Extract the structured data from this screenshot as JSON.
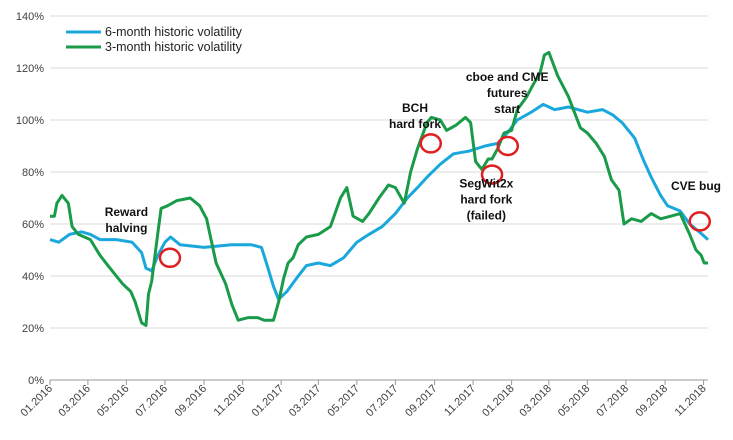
{
  "chart_data": {
    "type": "line",
    "title": "",
    "xlabel": "",
    "ylabel": "",
    "ylim": [
      0,
      140
    ],
    "yticks": [
      0,
      20,
      40,
      60,
      80,
      100,
      120,
      140
    ],
    "ytick_labels": [
      "0%",
      "20%",
      "40%",
      "60%",
      "80%",
      "100%",
      "120%",
      "140%"
    ],
    "xlim": [
      "2016-01-01",
      "2018-11-08"
    ],
    "x_tick_dates": [
      "2016-01-01",
      "2016-03-01",
      "2016-05-01",
      "2016-07-01",
      "2016-09-01",
      "2016-11-01",
      "2017-01-01",
      "2017-03-01",
      "2017-05-01",
      "2017-07-01",
      "2017-09-01",
      "2017-11-01",
      "2018-01-01",
      "2018-03-01",
      "2018-05-01",
      "2018-07-01",
      "2018-09-01",
      "2018-11-01"
    ],
    "x_tick_labels": [
      "01.2016",
      "03.2016",
      "05.2016",
      "07.2016",
      "09.2016",
      "11.2016",
      "01.2017",
      "03.2017",
      "05.2017",
      "07.2017",
      "09.2017",
      "11.2017",
      "01.2018",
      "03.2018",
      "05.2018",
      "07.2018",
      "09.2018",
      "11.2018"
    ],
    "grid": "horizontal",
    "legend_position": "top-left",
    "series": [
      {
        "name": "6-month historic volatility",
        "color": "#1aa8dc",
        "points": [
          [
            "2016-01-01",
            54
          ],
          [
            "2016-01-15",
            53
          ],
          [
            "2016-02-01",
            56
          ],
          [
            "2016-02-20",
            57
          ],
          [
            "2016-03-05",
            56
          ],
          [
            "2016-03-20",
            54
          ],
          [
            "2016-04-15",
            54
          ],
          [
            "2016-05-10",
            53
          ],
          [
            "2016-05-25",
            49
          ],
          [
            "2016-06-01",
            43
          ],
          [
            "2016-06-10",
            42
          ],
          [
            "2016-06-20",
            48
          ],
          [
            "2016-07-01",
            53
          ],
          [
            "2016-07-10",
            55
          ],
          [
            "2016-07-25",
            52
          ],
          [
            "2016-09-01",
            51
          ],
          [
            "2016-10-15",
            52
          ],
          [
            "2016-11-15",
            52
          ],
          [
            "2016-12-01",
            51
          ],
          [
            "2016-12-10",
            44
          ],
          [
            "2016-12-20",
            36
          ],
          [
            "2016-12-28",
            31
          ],
          [
            "2017-01-10",
            34
          ],
          [
            "2017-01-25",
            39
          ],
          [
            "2017-02-10",
            44
          ],
          [
            "2017-03-01",
            45
          ],
          [
            "2017-03-20",
            44
          ],
          [
            "2017-04-10",
            47
          ],
          [
            "2017-05-01",
            53
          ],
          [
            "2017-05-20",
            56
          ],
          [
            "2017-06-10",
            59
          ],
          [
            "2017-07-01",
            64
          ],
          [
            "2017-07-20",
            70
          ],
          [
            "2017-08-05",
            74
          ],
          [
            "2017-08-20",
            78
          ],
          [
            "2017-09-10",
            83
          ],
          [
            "2017-10-01",
            87
          ],
          [
            "2017-10-25",
            88
          ],
          [
            "2017-11-20",
            90
          ],
          [
            "2017-12-10",
            91
          ],
          [
            "2017-12-25",
            95
          ],
          [
            "2018-01-10",
            100
          ],
          [
            "2018-02-01",
            103
          ],
          [
            "2018-02-20",
            106
          ],
          [
            "2018-03-10",
            104
          ],
          [
            "2018-04-01",
            105
          ],
          [
            "2018-05-01",
            103
          ],
          [
            "2018-05-25",
            104
          ],
          [
            "2018-06-10",
            102
          ],
          [
            "2018-06-25",
            99
          ],
          [
            "2018-07-15",
            93
          ],
          [
            "2018-07-28",
            85
          ],
          [
            "2018-08-10",
            78
          ],
          [
            "2018-08-25",
            71
          ],
          [
            "2018-09-05",
            67
          ],
          [
            "2018-09-25",
            65
          ],
          [
            "2018-10-10",
            60
          ],
          [
            "2018-10-25",
            57
          ],
          [
            "2018-11-08",
            54
          ]
        ]
      },
      {
        "name": "3-month historic volatility",
        "color": "#1a9b4a",
        "points": [
          [
            "2016-01-01",
            63
          ],
          [
            "2016-01-08",
            63
          ],
          [
            "2016-01-12",
            68
          ],
          [
            "2016-01-20",
            71
          ],
          [
            "2016-01-30",
            68
          ],
          [
            "2016-02-05",
            59
          ],
          [
            "2016-02-15",
            56
          ],
          [
            "2016-03-05",
            54
          ],
          [
            "2016-03-20",
            48
          ],
          [
            "2016-04-05",
            43
          ],
          [
            "2016-04-25",
            37
          ],
          [
            "2016-05-08",
            34
          ],
          [
            "2016-05-15",
            30
          ],
          [
            "2016-05-25",
            22
          ],
          [
            "2016-06-01",
            21
          ],
          [
            "2016-06-05",
            33
          ],
          [
            "2016-06-10",
            38
          ],
          [
            "2016-06-20",
            57
          ],
          [
            "2016-06-25",
            66
          ],
          [
            "2016-07-05",
            67
          ],
          [
            "2016-07-20",
            69
          ],
          [
            "2016-08-10",
            70
          ],
          [
            "2016-08-25",
            67
          ],
          [
            "2016-09-05",
            62
          ],
          [
            "2016-09-20",
            45
          ],
          [
            "2016-10-05",
            37
          ],
          [
            "2016-10-15",
            29
          ],
          [
            "2016-10-25",
            23
          ],
          [
            "2016-11-10",
            24
          ],
          [
            "2016-11-25",
            24
          ],
          [
            "2016-12-05",
            23
          ],
          [
            "2016-12-20",
            23
          ],
          [
            "2016-12-28",
            30
          ],
          [
            "2017-01-05",
            39
          ],
          [
            "2017-01-12",
            45
          ],
          [
            "2017-01-20",
            47
          ],
          [
            "2017-01-28",
            52
          ],
          [
            "2017-02-10",
            55
          ],
          [
            "2017-03-01",
            56
          ],
          [
            "2017-03-20",
            59
          ],
          [
            "2017-04-05",
            70
          ],
          [
            "2017-04-15",
            74
          ],
          [
            "2017-04-25",
            63
          ],
          [
            "2017-05-10",
            61
          ],
          [
            "2017-05-20",
            64
          ],
          [
            "2017-06-05",
            70
          ],
          [
            "2017-06-20",
            75
          ],
          [
            "2017-07-01",
            74
          ],
          [
            "2017-07-15",
            68
          ],
          [
            "2017-07-25",
            80
          ],
          [
            "2017-08-05",
            89
          ],
          [
            "2017-08-20",
            99
          ],
          [
            "2017-08-27",
            101
          ],
          [
            "2017-09-10",
            100
          ],
          [
            "2017-09-20",
            96
          ],
          [
            "2017-10-05",
            98
          ],
          [
            "2017-10-20",
            101
          ],
          [
            "2017-10-28",
            99
          ],
          [
            "2017-11-05",
            84
          ],
          [
            "2017-11-15",
            81
          ],
          [
            "2017-11-25",
            85
          ],
          [
            "2017-12-01",
            85
          ],
          [
            "2017-12-10",
            89
          ],
          [
            "2017-12-20",
            95
          ],
          [
            "2018-01-01",
            96
          ],
          [
            "2018-01-10",
            104
          ],
          [
            "2018-01-25",
            109
          ],
          [
            "2018-02-05",
            114
          ],
          [
            "2018-02-15",
            118
          ],
          [
            "2018-02-22",
            125
          ],
          [
            "2018-03-01",
            126
          ],
          [
            "2018-03-15",
            117
          ],
          [
            "2018-04-01",
            109
          ],
          [
            "2018-04-20",
            97
          ],
          [
            "2018-05-01",
            95
          ],
          [
            "2018-05-15",
            91
          ],
          [
            "2018-05-28",
            86
          ],
          [
            "2018-06-08",
            77
          ],
          [
            "2018-06-20",
            73
          ],
          [
            "2018-06-28",
            60
          ],
          [
            "2018-07-10",
            62
          ],
          [
            "2018-07-25",
            61
          ],
          [
            "2018-08-10",
            64
          ],
          [
            "2018-08-25",
            62
          ],
          [
            "2018-09-10",
            63
          ],
          [
            "2018-09-25",
            64
          ],
          [
            "2018-10-10",
            56
          ],
          [
            "2018-10-20",
            50
          ],
          [
            "2018-10-28",
            48
          ],
          [
            "2018-11-02",
            45
          ],
          [
            "2018-11-08",
            45
          ]
        ]
      }
    ],
    "annotations": [
      {
        "lines": [
          "Reward",
          "halving"
        ],
        "date": "2016-05-01",
        "y": 63
      },
      {
        "lines": [
          "BCH",
          "hard fork"
        ],
        "date": "2017-08-01",
        "y": 103
      },
      {
        "lines": [
          "cboe and CME",
          "futures",
          "start"
        ],
        "date": "2017-12-25",
        "y": 115
      },
      {
        "lines": [
          "SegWit2x",
          "hard fork",
          "(failed)"
        ],
        "date": "2017-11-22",
        "y": 74
      },
      {
        "lines": [
          "CVE bug"
        ],
        "date": "2018-10-20",
        "y": 73
      }
    ],
    "markers": [
      {
        "date": "2016-07-09",
        "y": 47
      },
      {
        "date": "2017-08-26",
        "y": 91
      },
      {
        "date": "2017-12-01",
        "y": 79
      },
      {
        "date": "2017-12-26",
        "y": 90
      },
      {
        "date": "2018-10-26",
        "y": 61
      }
    ],
    "marker_color": "#e02020"
  }
}
